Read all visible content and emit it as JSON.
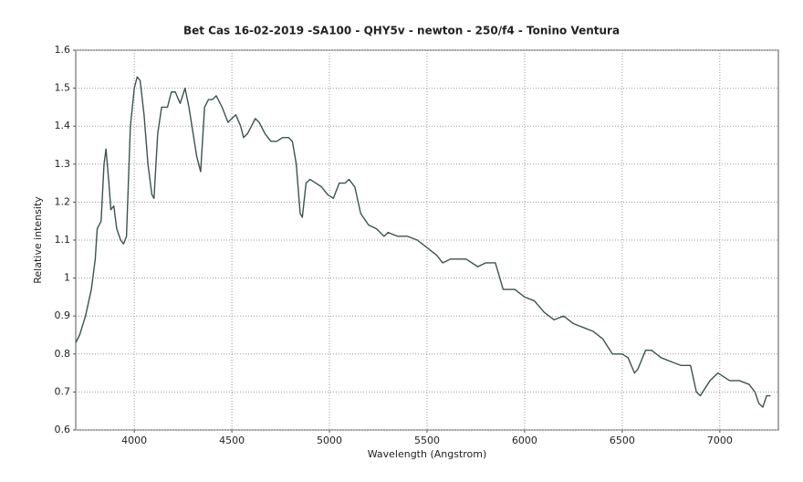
{
  "chart_data": {
    "type": "line",
    "title": "Bet Cas 16-02-2019 -SA100 - QHY5v - newton - 250/f4 - Tonino Ventura",
    "x_label": "Wavelength (Angstrom)",
    "y_label": "Relative intensity",
    "color": "#3d5252",
    "grid": true,
    "xlim": [
      3700,
      7300
    ],
    "ylim": [
      0.6,
      1.6
    ],
    "xticks": [
      4000,
      4500,
      5000,
      5500,
      6000,
      6500,
      7000
    ],
    "yticks": [
      0.6,
      0.7,
      0.8,
      0.9,
      1,
      1.1,
      1.2,
      1.3,
      1.4,
      1.5,
      1.6
    ],
    "x": [
      3700,
      3720,
      3750,
      3780,
      3800,
      3810,
      3830,
      3845,
      3855,
      3870,
      3880,
      3895,
      3910,
      3930,
      3945,
      3960,
      3980,
      4000,
      4015,
      4030,
      4050,
      4070,
      4090,
      4101,
      4120,
      4140,
      4170,
      4190,
      4210,
      4235,
      4260,
      4280,
      4320,
      4340,
      4360,
      4380,
      4400,
      4420,
      4450,
      4480,
      4500,
      4520,
      4545,
      4560,
      4580,
      4620,
      4640,
      4670,
      4700,
      4730,
      4760,
      4790,
      4810,
      4830,
      4850,
      4861,
      4880,
      4900,
      4930,
      4960,
      4990,
      5020,
      5050,
      5080,
      5100,
      5130,
      5160,
      5200,
      5240,
      5280,
      5300,
      5350,
      5400,
      5450,
      5500,
      5550,
      5580,
      5620,
      5700,
      5760,
      5800,
      5850,
      5890,
      5950,
      6000,
      6050,
      6100,
      6150,
      6200,
      6250,
      6300,
      6350,
      6400,
      6450,
      6500,
      6530,
      6563,
      6580,
      6620,
      6650,
      6700,
      6750,
      6800,
      6850,
      6880,
      6900,
      6950,
      6990,
      7050,
      7100,
      7150,
      7180,
      7200,
      7220,
      7240,
      7260
    ],
    "values": [
      0.83,
      0.85,
      0.9,
      0.97,
      1.05,
      1.13,
      1.15,
      1.3,
      1.34,
      1.25,
      1.18,
      1.19,
      1.13,
      1.1,
      1.09,
      1.11,
      1.4,
      1.5,
      1.53,
      1.52,
      1.43,
      1.3,
      1.22,
      1.21,
      1.38,
      1.45,
      1.45,
      1.49,
      1.49,
      1.46,
      1.5,
      1.45,
      1.32,
      1.28,
      1.45,
      1.47,
      1.47,
      1.48,
      1.45,
      1.41,
      1.42,
      1.43,
      1.4,
      1.37,
      1.38,
      1.42,
      1.41,
      1.38,
      1.36,
      1.36,
      1.37,
      1.37,
      1.36,
      1.3,
      1.17,
      1.16,
      1.25,
      1.26,
      1.25,
      1.24,
      1.22,
      1.21,
      1.25,
      1.25,
      1.26,
      1.24,
      1.17,
      1.14,
      1.13,
      1.11,
      1.12,
      1.11,
      1.11,
      1.1,
      1.08,
      1.06,
      1.04,
      1.05,
      1.05,
      1.03,
      1.04,
      1.04,
      0.97,
      0.97,
      0.95,
      0.94,
      0.91,
      0.89,
      0.9,
      0.88,
      0.87,
      0.86,
      0.84,
      0.8,
      0.8,
      0.79,
      0.75,
      0.76,
      0.81,
      0.81,
      0.79,
      0.78,
      0.77,
      0.77,
      0.7,
      0.69,
      0.73,
      0.75,
      0.73,
      0.73,
      0.72,
      0.7,
      0.67,
      0.66,
      0.69,
      0.69
    ]
  }
}
